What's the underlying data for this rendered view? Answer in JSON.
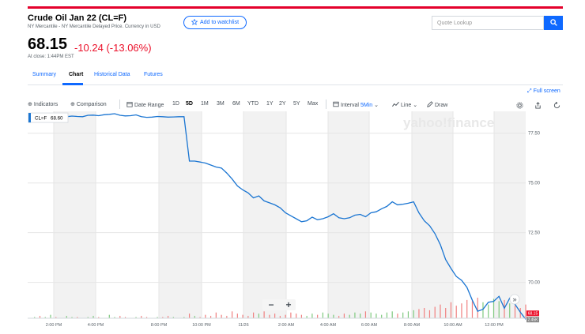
{
  "header": {
    "title": "Crude Oil Jan 22 (CL=F)",
    "subtitle": "NY Mercantile - NY Mercantile Delayed Price. Currency in USD",
    "watchlist_label": "Add to watchlist",
    "search_placeholder": "Quote Lookup"
  },
  "quote": {
    "price": "68.15",
    "change": "-10.24 (-13.06%)",
    "close_time": "At close: 1:44PM EST"
  },
  "tabs": [
    {
      "label": "Summary",
      "active": false
    },
    {
      "label": "Chart",
      "active": true
    },
    {
      "label": "Historical Data",
      "active": false
    },
    {
      "label": "Futures",
      "active": false
    }
  ],
  "fullscreen_label": "Full screen",
  "toolbar": {
    "indicators": "Indicators",
    "comparison": "Comparison",
    "date_range": "Date Range",
    "ranges": [
      "1D",
      "5D",
      "1M",
      "3M",
      "6M",
      "YTD",
      "1Y",
      "2Y",
      "5Y",
      "Max"
    ],
    "selected_range": "5D",
    "interval_label": "Interval",
    "interval_value": "5Min",
    "line_label": "Line",
    "draw_label": "Draw",
    "icons": [
      "settings-icon",
      "share-icon",
      "reset-icon"
    ]
  },
  "colors": {
    "accent": "#0f69ff",
    "negative": "#eb0f29",
    "brand_bar": "#e4002b",
    "line": "#1a75d2"
  },
  "chart_data": {
    "type": "line",
    "series_label": "CL=F",
    "series_value": "68.60",
    "watermark": "yahoo!finance",
    "ylim": [
      68.2,
      78.6
    ],
    "y_ticks": [
      "77.50",
      "75.00",
      "72.50",
      "70.00"
    ],
    "x_tick_labels": [
      "2:00 PM",
      "4:00 PM",
      "8:00 PM",
      "10:00 PM",
      "11/26",
      "2:00 AM",
      "4:00 AM",
      "6:00 AM",
      "8:00 AM",
      "10:00 AM",
      "12:00 PM"
    ],
    "price_badge": "68.15",
    "volume_badge": "2.45K",
    "zoom_out": "−",
    "zoom_in": "+",
    "scroll_right": "»",
    "values": [
      78.28,
      78.3,
      78.22,
      78.28,
      78.3,
      78.26,
      78.32,
      78.33,
      78.36,
      78.34,
      78.33,
      78.4,
      78.41,
      78.38,
      78.43,
      78.45,
      78.48,
      78.4,
      78.37,
      78.38,
      78.42,
      78.33,
      78.3,
      78.31,
      78.34,
      78.33,
      78.31,
      78.32,
      78.33,
      78.33,
      76.1,
      76.1,
      76.05,
      76.0,
      75.9,
      75.8,
      75.75,
      75.5,
      75.2,
      74.85,
      74.65,
      74.5,
      74.25,
      74.35,
      74.1,
      74.0,
      73.9,
      73.75,
      73.5,
      73.35,
      73.2,
      73.05,
      73.1,
      73.28,
      73.15,
      73.2,
      73.3,
      73.45,
      73.25,
      73.2,
      73.25,
      73.38,
      73.42,
      73.3,
      73.5,
      73.55,
      73.7,
      73.82,
      74.05,
      73.9,
      73.93,
      73.98,
      74.05,
      73.5,
      73.1,
      72.85,
      72.45,
      71.9,
      71.15,
      70.7,
      70.3,
      70.1,
      69.75,
      69.1,
      68.55,
      68.65,
      69.0,
      69.05,
      69.3,
      68.7,
      69.2,
      68.9,
      68.5,
      68.15
    ],
    "volume": [
      0,
      1,
      2,
      1,
      3,
      1,
      0,
      2,
      1,
      1,
      0,
      1,
      2,
      1,
      0,
      3,
      1,
      2,
      1,
      0,
      1,
      2,
      1,
      0,
      1,
      1,
      2,
      1,
      0,
      1,
      4,
      2,
      1,
      3,
      2,
      5,
      3,
      2,
      6,
      4,
      3,
      2,
      5,
      4,
      6,
      3,
      4,
      2,
      3,
      5,
      4,
      3,
      2,
      4,
      3,
      5,
      4,
      3,
      2,
      4,
      3,
      5,
      4,
      6,
      5,
      4,
      3,
      5,
      6,
      4,
      5,
      6,
      7,
      8,
      9,
      7,
      10,
      12,
      9,
      14,
      11,
      13,
      16,
      15,
      18,
      14,
      12,
      17,
      15,
      16,
      13,
      11,
      9,
      12
    ]
  }
}
